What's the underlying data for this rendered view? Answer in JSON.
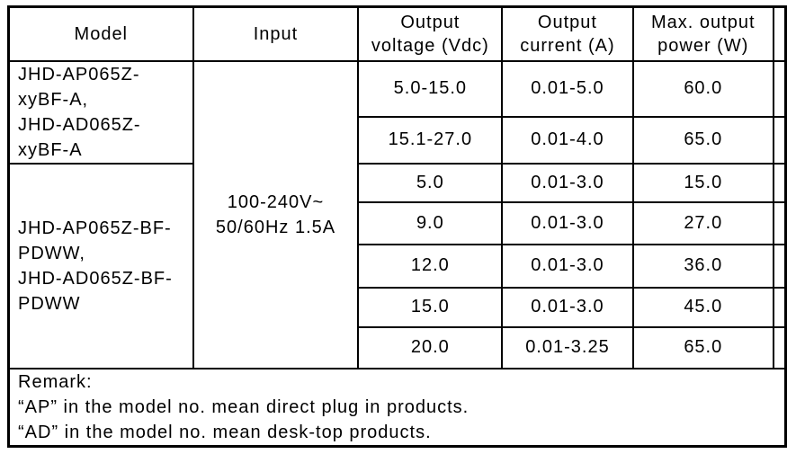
{
  "document": {
    "colors": {
      "background": "#ffffff",
      "border": "#000000",
      "text": "#000000"
    },
    "table": {
      "headers": {
        "model": "Model",
        "input": "Input",
        "output_voltage": [
          "Output",
          "voltage (Vdc)"
        ],
        "output_current": [
          "Output",
          "current (A)"
        ],
        "max_output_power": [
          "Max. output",
          "power (W)"
        ]
      },
      "model_groups": [
        {
          "lines": [
            "JHD-AP065Z-",
            "xyBF-A,",
            "JHD-AD065Z-",
            "xyBF-A"
          ]
        },
        {
          "lines": [
            "JHD-AP065Z-BF-",
            "PDWW,",
            "JHD-AD065Z-BF-",
            "PDWW"
          ]
        }
      ],
      "input_value": {
        "lines": [
          "100-240V~",
          "50/60Hz 1.5A"
        ]
      },
      "rows": [
        {
          "voltage": "5.0-15.0",
          "current": "0.01-5.0",
          "power": "60.0"
        },
        {
          "voltage": "15.1-27.0",
          "current": "0.01-4.0",
          "power": "65.0"
        },
        {
          "voltage": "5.0",
          "current": "0.01-3.0",
          "power": "15.0"
        },
        {
          "voltage": "9.0",
          "current": "0.01-3.0",
          "power": "27.0"
        },
        {
          "voltage": "12.0",
          "current": "0.01-3.0",
          "power": "36.0"
        },
        {
          "voltage": "15.0",
          "current": "0.01-3.0",
          "power": "45.0"
        },
        {
          "voltage": "20.0",
          "current": "0.01-3.25",
          "power": "65.0"
        }
      ],
      "remark": {
        "lines": [
          "Remark:",
          "“AP” in the model no. mean direct plug in products.",
          "“AD” in the model no. mean desk-top products."
        ]
      }
    }
  }
}
